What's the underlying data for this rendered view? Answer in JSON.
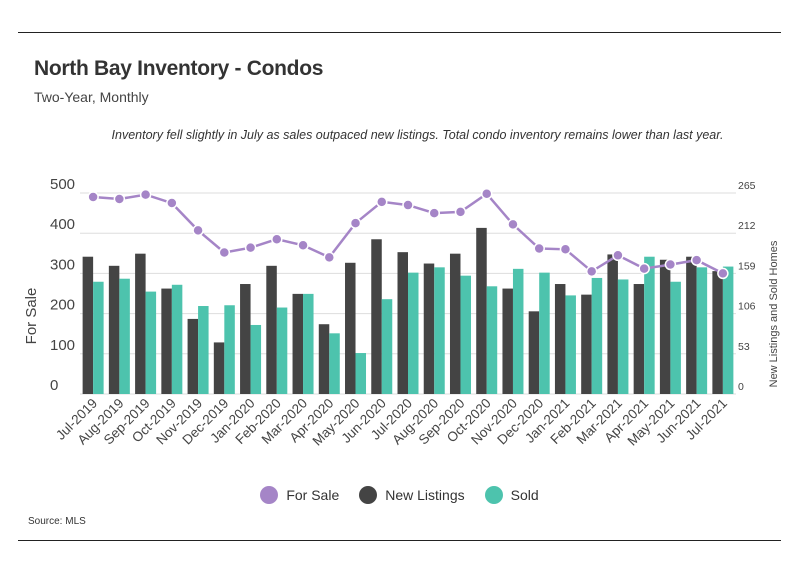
{
  "header": {
    "title": "North Bay Inventory - Condos",
    "subtitle": "Two-Year, Monthly",
    "annotation": "Inventory fell slightly in July as sales outpaced new listings. Total condo inventory remains lower than last year."
  },
  "footer": {
    "source": "Source:  MLS"
  },
  "colors": {
    "for_sale": "#a585c7",
    "new_listings": "#444444",
    "sold": "#4dc3ad",
    "grid": "#dddddd"
  },
  "chart_data": {
    "type": "bar",
    "categories": [
      "Jul-2019",
      "Aug-2019",
      "Sep-2019",
      "Oct-2019",
      "Nov-2019",
      "Dec-2019",
      "Jan-2020",
      "Feb-2020",
      "Mar-2020",
      "Apr-2020",
      "May-2020",
      "Jun-2020",
      "Jul-2020",
      "Aug-2020",
      "Sep-2020",
      "Oct-2020",
      "Nov-2020",
      "Dec-2020",
      "Jan-2021",
      "Feb-2021",
      "Mar-2021",
      "Apr-2021",
      "May-2021",
      "Jun-2021",
      "Jul-2021"
    ],
    "series": [
      {
        "name": "For Sale",
        "type": "line",
        "axis": "left",
        "values": [
          490,
          485,
          496,
          475,
          407,
          352,
          364,
          385,
          370,
          340,
          425,
          478,
          470,
          450,
          453,
          498,
          422,
          362,
          360,
          305,
          345,
          312,
          322,
          333,
          300
        ]
      },
      {
        "name": "New Listings",
        "type": "bar",
        "axis": "right",
        "values": [
          181,
          169,
          185,
          139,
          99,
          68,
          145,
          169,
          132,
          92,
          173,
          204,
          187,
          172,
          185,
          219,
          139,
          109,
          145,
          131,
          184,
          145,
          177,
          181,
          162
        ]
      },
      {
        "name": "Sold",
        "type": "bar",
        "axis": "right",
        "values": [
          148,
          152,
          135,
          144,
          116,
          117,
          91,
          114,
          132,
          80,
          54,
          125,
          160,
          167,
          156,
          142,
          165,
          160,
          130,
          153,
          151,
          181,
          148,
          167,
          168
        ]
      }
    ],
    "ylabel": "For Sale",
    "ylim": [
      0,
      500
    ],
    "yticks": [
      "0",
      "100",
      "200",
      "300",
      "400",
      "500"
    ],
    "y2label": "New Listings and Sold Homes",
    "y2lim": [
      0,
      265
    ],
    "y2ticks": [
      "0",
      "53",
      "106",
      "159",
      "212",
      "265"
    ],
    "legend": [
      "For Sale",
      "New Listings",
      "Sold"
    ],
    "legend_position": "bottom-center"
  }
}
